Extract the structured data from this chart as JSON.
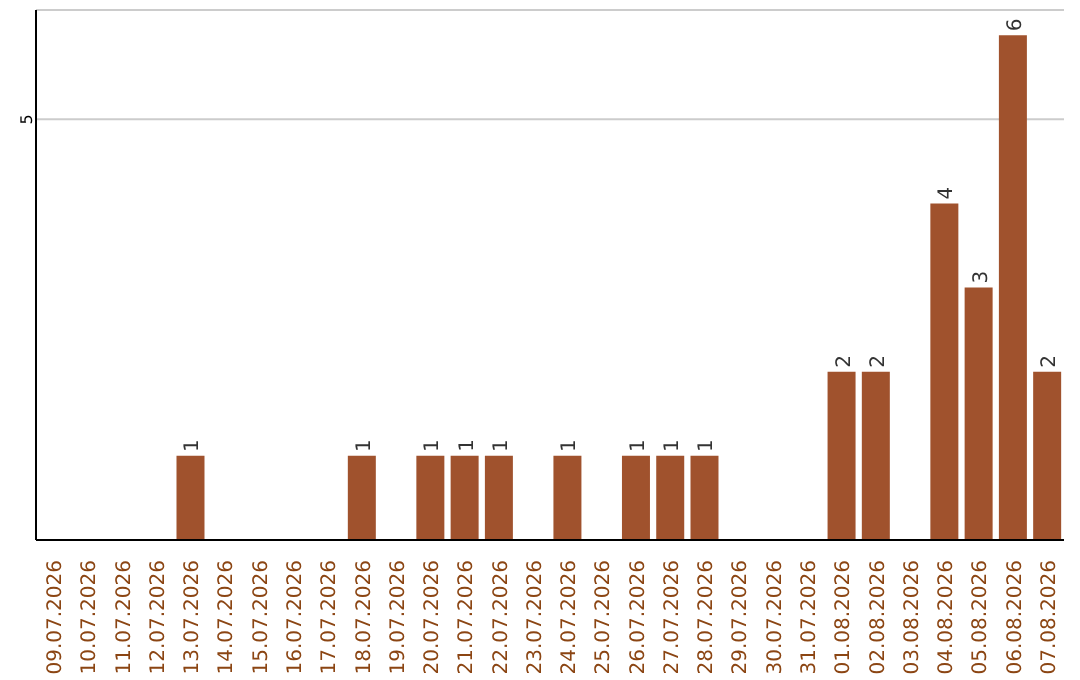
{
  "chart_data": {
    "type": "bar",
    "categories": [
      "09.07.2026",
      "10.07.2026",
      "11.07.2026",
      "12.07.2026",
      "13.07.2026",
      "14.07.2026",
      "15.07.2026",
      "16.07.2026",
      "17.07.2026",
      "18.07.2026",
      "19.07.2026",
      "20.07.2026",
      "21.07.2026",
      "22.07.2026",
      "23.07.2026",
      "24.07.2026",
      "25.07.2026",
      "26.07.2026",
      "27.07.2026",
      "28.07.2026",
      "29.07.2026",
      "30.07.2026",
      "31.07.2026",
      "01.08.2026",
      "02.08.2026",
      "03.08.2026",
      "04.08.2026",
      "05.08.2026",
      "06.08.2026",
      "07.08.2026"
    ],
    "values": [
      0,
      0,
      0,
      0,
      1,
      0,
      0,
      0,
      0,
      1,
      0,
      1,
      1,
      1,
      0,
      1,
      0,
      1,
      1,
      1,
      0,
      0,
      0,
      2,
      2,
      0,
      4,
      3,
      6,
      2
    ],
    "value_labels": [
      null,
      null,
      null,
      null,
      "1",
      null,
      null,
      null,
      null,
      "1",
      null,
      "1",
      "1",
      "1",
      null,
      "1",
      null,
      "1",
      "1",
      "1",
      null,
      null,
      null,
      "2",
      "2",
      null,
      "4",
      "3",
      "6",
      "2"
    ],
    "color": "#a0522d",
    "ylim": [
      0,
      6.3
    ],
    "yticks": [
      5
    ],
    "grid": "y"
  }
}
